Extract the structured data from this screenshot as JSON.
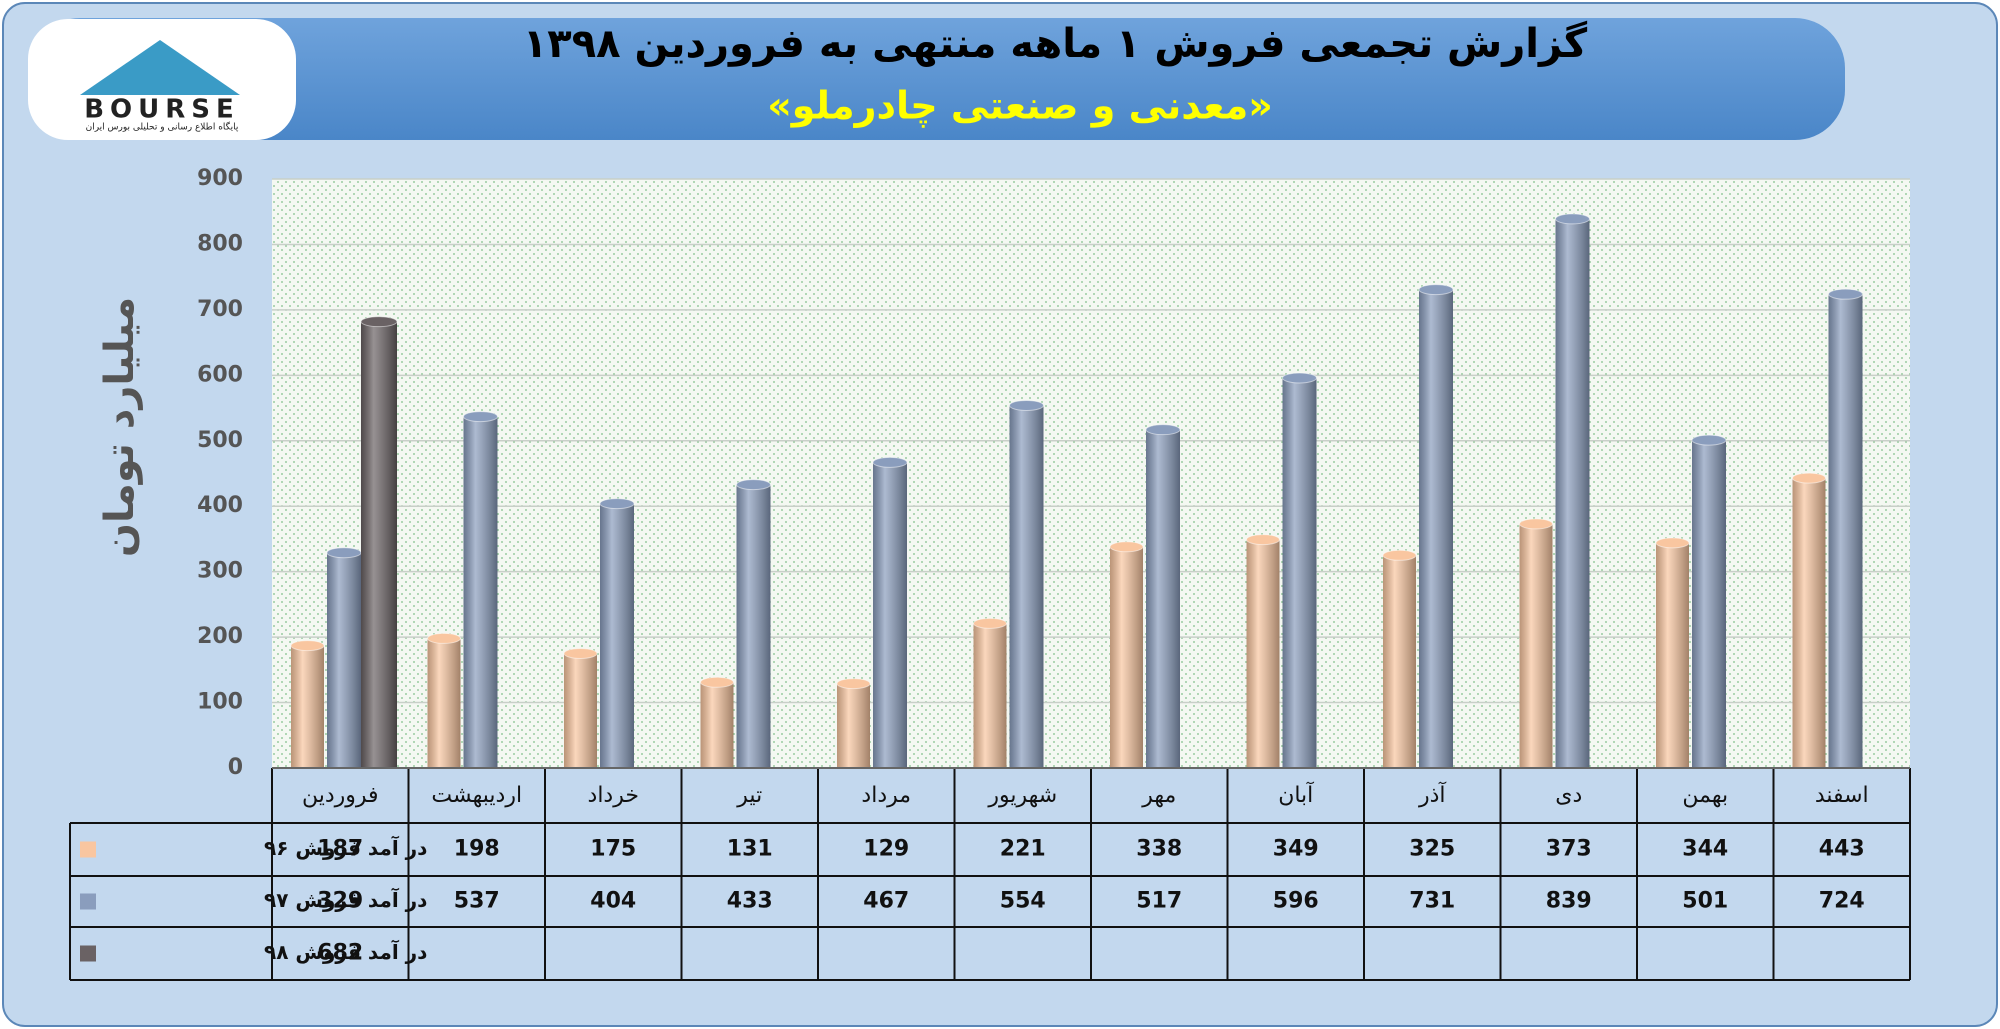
{
  "logo": {
    "text": "BOURSE",
    "tagline": "پایگاه اطلاع رسانی و تحلیلی بورس ایران"
  },
  "chart_data": {
    "type": "bar",
    "title": "گزارش تجمعی فروش ۱ ماهه منتهی به فروردین ۱۳۹۸",
    "subtitle": "«معدنی و صنعتی چادرملو»",
    "y_label": "میلیارد تومان",
    "categories": [
      "فروردین",
      "اردیبهشت",
      "خرداد",
      "تیر",
      "مرداد",
      "شهریور",
      "مهر",
      "آبان",
      "آذر",
      "دی",
      "بهمن",
      "اسفند"
    ],
    "series": [
      {
        "name": "در آمد فروش ۹۶",
        "color": "#f9c6a0",
        "values": [
          187,
          198,
          175,
          131,
          129,
          221,
          338,
          349,
          325,
          373,
          344,
          443
        ]
      },
      {
        "name": "در آمد فروش ۹۷",
        "color": "#8a9dbd",
        "values": [
          329,
          537,
          404,
          433,
          467,
          554,
          517,
          596,
          731,
          839,
          501,
          724
        ]
      },
      {
        "name": "در آمد فروش ۹۸",
        "color": "#6a6264",
        "values": [
          682,
          null,
          null,
          null,
          null,
          null,
          null,
          null,
          null,
          null,
          null,
          null
        ]
      }
    ],
    "ylim": [
      0,
      900
    ],
    "yticks": [
      0,
      100,
      200,
      300,
      400,
      500,
      600,
      700,
      800,
      900
    ],
    "grid": true
  }
}
